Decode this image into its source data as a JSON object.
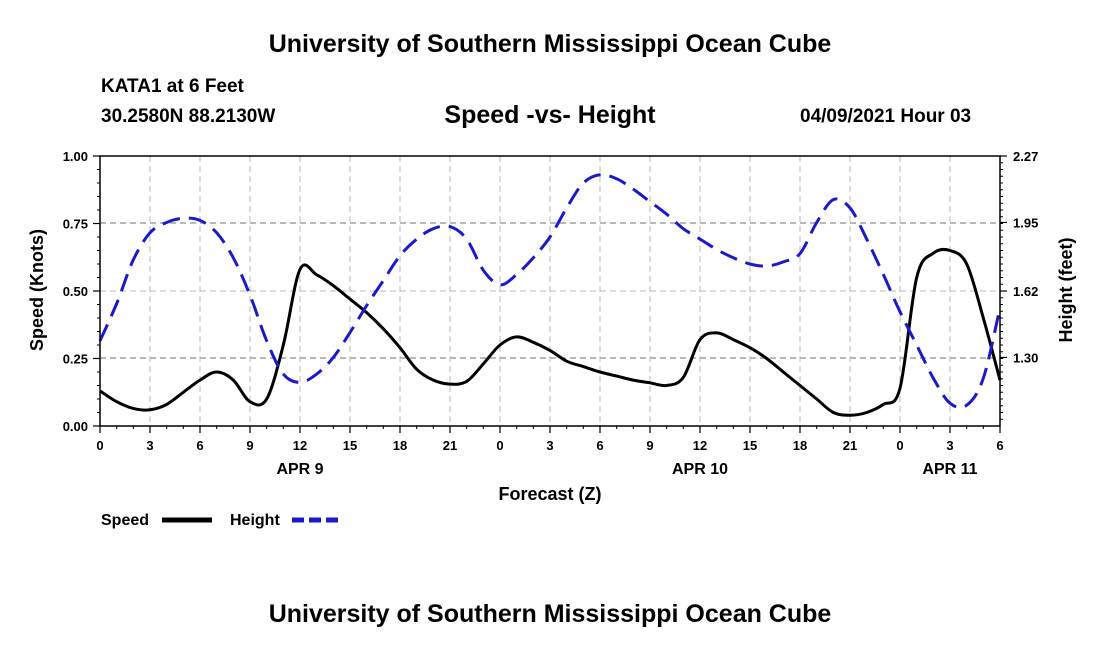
{
  "header": {
    "title_top": "University of Southern Mississippi Ocean Cube",
    "station": "KATA1 at 6 Feet",
    "coords": "30.2580N  88.2130W",
    "chart_title": "Speed -vs- Height",
    "datetime": "04/09/2021 Hour 03",
    "title_bottom": "University of Southern Mississippi Ocean Cube"
  },
  "colors": {
    "speed": "#000000",
    "height": "#1a1acc",
    "grid": "#b8b8b8"
  },
  "chart_data": {
    "type": "line",
    "title": "Speed -vs- Height",
    "xlabel": "Forecast (Z)",
    "ylabel": "Speed (Knots)",
    "y2label": "Height (feet)",
    "xlim": [
      0,
      54
    ],
    "ylim": [
      0,
      1.0
    ],
    "y2lim": [
      0.97,
      2.27
    ],
    "x_ticks": [
      0,
      3,
      6,
      9,
      12,
      15,
      18,
      21,
      24,
      27,
      30,
      33,
      36,
      39,
      42,
      45,
      48,
      51,
      54
    ],
    "x_tick_labels": [
      "0",
      "3",
      "6",
      "9",
      "12",
      "15",
      "18",
      "21",
      "0",
      "3",
      "6",
      "9",
      "12",
      "15",
      "18",
      "21",
      "0",
      "3",
      "6"
    ],
    "day_labels": [
      {
        "x": 12,
        "label": "APR 9"
      },
      {
        "x": 36,
        "label": "APR 10"
      },
      {
        "x": 51,
        "label": "APR 11"
      }
    ],
    "y_ticks": [
      0.0,
      0.25,
      0.5,
      0.75,
      1.0
    ],
    "y_tick_labels": [
      "0.00",
      "0.25",
      "0.50",
      "0.75",
      "1.00"
    ],
    "y2_ticks": [
      1.3,
      1.62,
      1.95,
      2.27
    ],
    "y2_tick_labels": [
      "1.30",
      "1.62",
      "1.95",
      "2.27"
    ],
    "grid": true,
    "series": [
      {
        "name": "Speed",
        "axis": "left",
        "style": "solid",
        "x": [
          0,
          1,
          2,
          3,
          4,
          5,
          6,
          7,
          8,
          9,
          10,
          11,
          12,
          13,
          14,
          15,
          16,
          17,
          18,
          19,
          20,
          21,
          22,
          23,
          24,
          25,
          26,
          27,
          28,
          29,
          30,
          31,
          32,
          33,
          34,
          35,
          36,
          37,
          38,
          39,
          40,
          41,
          42,
          43,
          44,
          45,
          46,
          47,
          48,
          49,
          50,
          51,
          52,
          53,
          54
        ],
        "values": [
          0.13,
          0.09,
          0.065,
          0.06,
          0.08,
          0.125,
          0.17,
          0.2,
          0.17,
          0.09,
          0.1,
          0.3,
          0.58,
          0.56,
          0.52,
          0.47,
          0.42,
          0.36,
          0.29,
          0.21,
          0.17,
          0.155,
          0.165,
          0.23,
          0.3,
          0.33,
          0.31,
          0.28,
          0.24,
          0.22,
          0.2,
          0.185,
          0.17,
          0.16,
          0.15,
          0.18,
          0.32,
          0.345,
          0.32,
          0.29,
          0.25,
          0.2,
          0.15,
          0.1,
          0.05,
          0.04,
          0.05,
          0.08,
          0.14,
          0.55,
          0.64,
          0.65,
          0.6,
          0.4,
          0.17
        ]
      },
      {
        "name": "Height",
        "axis": "right",
        "style": "dashed",
        "x": [
          0,
          1,
          2,
          3,
          4,
          5,
          6,
          7,
          8,
          9,
          10,
          11,
          12,
          13,
          14,
          15,
          16,
          17,
          18,
          19,
          20,
          21,
          22,
          23,
          24,
          25,
          26,
          27,
          28,
          29,
          30,
          31,
          32,
          33,
          34,
          35,
          36,
          37,
          38,
          39,
          40,
          41,
          42,
          43,
          44,
          45,
          46,
          47,
          48,
          49,
          50,
          51,
          52,
          53,
          54
        ],
        "values": [
          1.38,
          1.56,
          1.77,
          1.9,
          1.95,
          1.97,
          1.96,
          1.9,
          1.78,
          1.6,
          1.38,
          1.22,
          1.18,
          1.22,
          1.3,
          1.42,
          1.55,
          1.67,
          1.79,
          1.87,
          1.92,
          1.93,
          1.87,
          1.72,
          1.65,
          1.7,
          1.78,
          1.88,
          2.02,
          2.14,
          2.18,
          2.16,
          2.11,
          2.05,
          1.99,
          1.92,
          1.87,
          1.82,
          1.78,
          1.75,
          1.74,
          1.76,
          1.8,
          1.95,
          2.06,
          2.02,
          1.87,
          1.7,
          1.52,
          1.36,
          1.2,
          1.08,
          1.07,
          1.2,
          1.54
        ]
      }
    ],
    "legend": [
      {
        "label": "Speed",
        "series": "Speed"
      },
      {
        "label": "Height",
        "series": "Height"
      }
    ]
  }
}
